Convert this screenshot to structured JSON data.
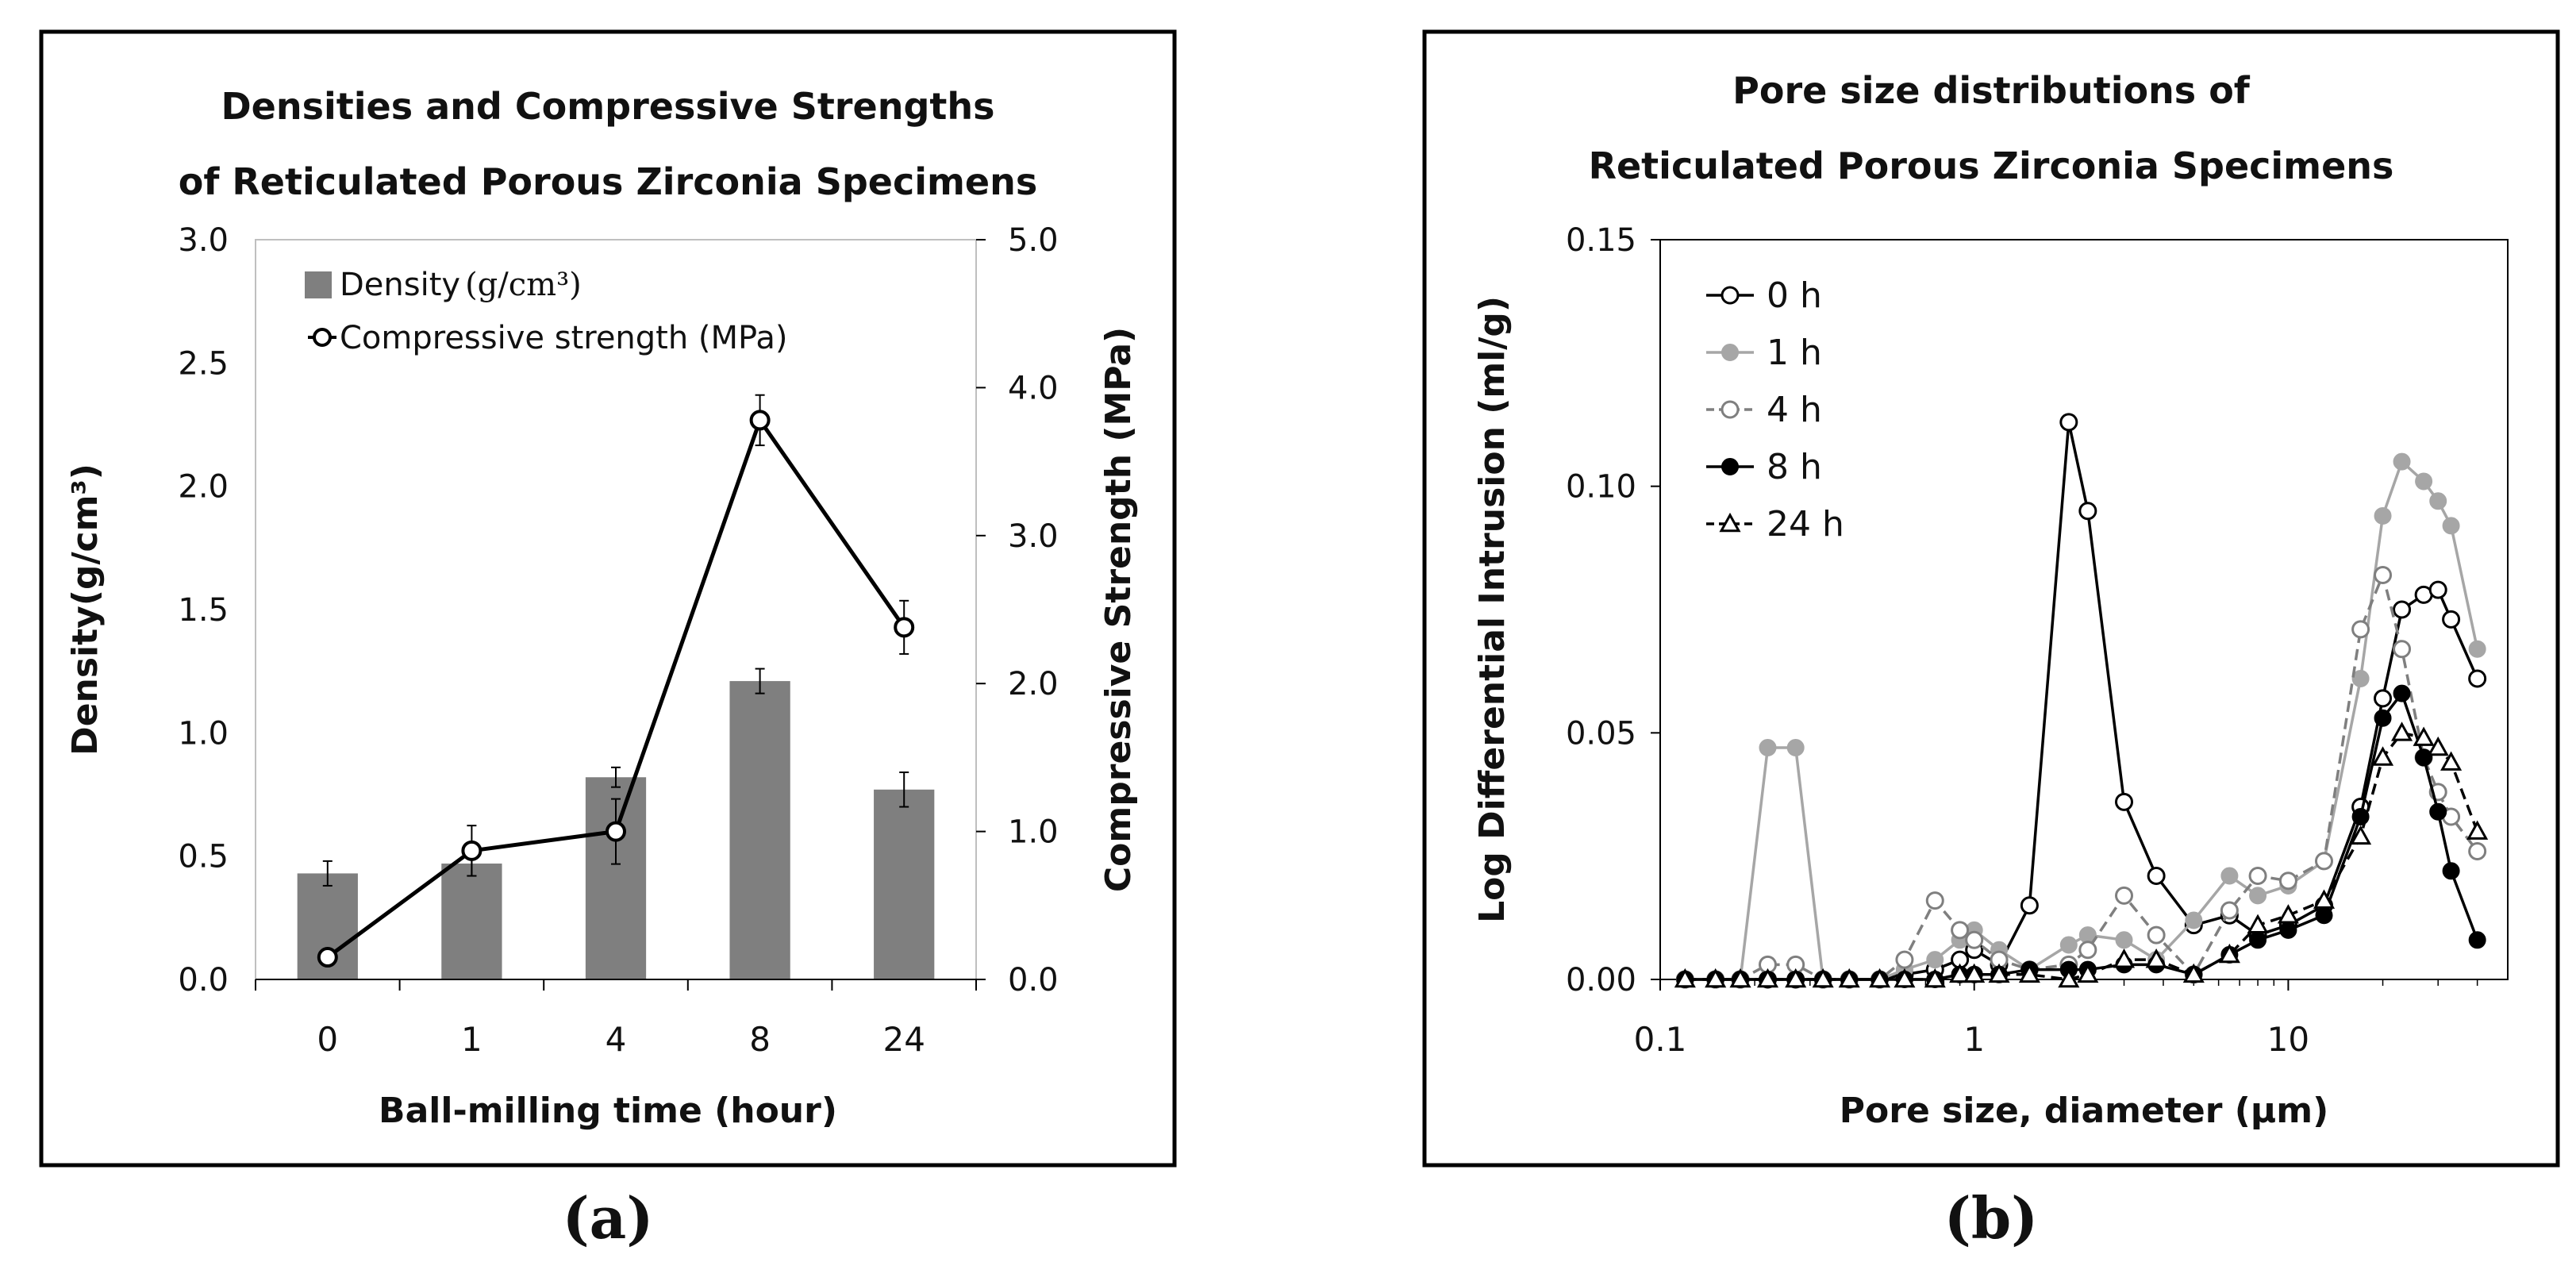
{
  "chart_data": [
    {
      "panel_label": "(a)",
      "type": "bar+line",
      "title_line1": "Densities and Compressive Strengths",
      "title_line2": "of Reticulated Porous Zirconia Specimens",
      "xlabel": "Ball-milling time (hour)",
      "ylabel_left": "Density(g/cm³)",
      "ylabel_right": "Compressive Strength (MPa)",
      "categories": [
        "0",
        "1",
        "4",
        "8",
        "24"
      ],
      "ylim_left": [
        0,
        3.0
      ],
      "ylim_right": [
        0,
        5.0
      ],
      "yticks_left": [
        "0.0",
        "0.5",
        "1.0",
        "1.5",
        "2.0",
        "2.5",
        "3.0"
      ],
      "yticks_right": [
        "0.0",
        "1.0",
        "2.0",
        "3.0",
        "4.0",
        "5.0"
      ],
      "legend_density": "Density",
      "legend_density_unit": "(g/cm³)",
      "legend_strength": "Compressive strength (MPa)",
      "density": {
        "values": [
          0.43,
          0.47,
          0.82,
          1.21,
          0.77
        ],
        "errors": [
          0.05,
          0.05,
          0.04,
          0.05,
          0.07
        ],
        "color": "#7f7f7f"
      },
      "strength": {
        "values": [
          0.15,
          0.87,
          1.0,
          3.78,
          2.38
        ],
        "errors": [
          0.03,
          0.17,
          0.22,
          0.17,
          0.18
        ],
        "color": "#000000"
      }
    },
    {
      "panel_label": "(b)",
      "type": "line",
      "xscale": "log",
      "title_line1": "Pore size distributions of",
      "title_line2": "Reticulated Porous Zirconia Specimens",
      "xlabel": "Pore size, diameter (μm)",
      "ylabel": "Log Differential Intrusion (ml/g)",
      "xlim": [
        0.1,
        50
      ],
      "ylim": [
        0,
        0.15
      ],
      "xticks": [
        0.1,
        1,
        10
      ],
      "xtick_labels": [
        "0.1",
        "1",
        "10"
      ],
      "yticks": [
        0,
        0.05,
        0.1,
        0.15
      ],
      "ytick_labels": [
        "0.00",
        "0.05",
        "0.10",
        "0.15"
      ],
      "series": [
        {
          "name": "0 h",
          "color": "#000000",
          "marker": "open-circle",
          "dash": "solid",
          "x": [
            0.12,
            0.15,
            0.18,
            0.22,
            0.27,
            0.33,
            0.4,
            0.5,
            0.6,
            0.75,
            0.9,
            1.0,
            1.2,
            1.5,
            2.0,
            2.3,
            3.0,
            3.8,
            5.0,
            6.5,
            8.0,
            10.0,
            13.0,
            17.0,
            20.0,
            23.0,
            27.0,
            30.0,
            33.0,
            40.0
          ],
          "y": [
            0,
            0,
            0,
            0,
            0,
            0,
            0,
            0,
            0.001,
            0.002,
            0.004,
            0.006,
            0.003,
            0.015,
            0.113,
            0.095,
            0.036,
            0.021,
            0.011,
            0.013,
            0.009,
            0.011,
            0.015,
            0.035,
            0.057,
            0.075,
            0.078,
            0.079,
            0.073,
            0.061
          ]
        },
        {
          "name": "1 h",
          "color": "#a6a6a6",
          "marker": "filled-circle",
          "dash": "solid",
          "x": [
            0.12,
            0.15,
            0.18,
            0.22,
            0.27,
            0.33,
            0.4,
            0.5,
            0.6,
            0.75,
            0.9,
            1.0,
            1.2,
            1.5,
            2.0,
            2.3,
            3.0,
            3.8,
            5.0,
            6.5,
            8.0,
            10.0,
            13.0,
            17.0,
            20.0,
            23.0,
            27.0,
            30.0,
            33.0,
            40.0
          ],
          "y": [
            0,
            0,
            0,
            0.047,
            0.047,
            0,
            0,
            0,
            0.002,
            0.004,
            0.008,
            0.01,
            0.006,
            0.002,
            0.007,
            0.009,
            0.008,
            0.004,
            0.012,
            0.021,
            0.017,
            0.019,
            0.024,
            0.061,
            0.094,
            0.105,
            0.101,
            0.097,
            0.092,
            0.067
          ]
        },
        {
          "name": "4 h",
          "color": "#7f7f7f",
          "marker": "open-circle",
          "dash": "dashed",
          "x": [
            0.12,
            0.15,
            0.18,
            0.22,
            0.27,
            0.33,
            0.4,
            0.5,
            0.6,
            0.75,
            0.9,
            1.0,
            1.2,
            1.5,
            2.0,
            2.3,
            3.0,
            3.8,
            5.0,
            6.5,
            8.0,
            10.0,
            13.0,
            17.0,
            20.0,
            23.0,
            27.0,
            30.0,
            33.0,
            40.0
          ],
          "y": [
            0,
            0,
            0,
            0.003,
            0.003,
            0,
            0,
            0,
            0.004,
            0.016,
            0.01,
            0.008,
            0.004,
            0.002,
            0.003,
            0.006,
            0.017,
            0.009,
            0.001,
            0.014,
            0.021,
            0.02,
            0.024,
            0.071,
            0.082,
            0.067,
            0.045,
            0.038,
            0.033,
            0.026
          ]
        },
        {
          "name": "8 h",
          "color": "#000000",
          "marker": "filled-circle",
          "dash": "solid",
          "x": [
            0.12,
            0.15,
            0.18,
            0.22,
            0.27,
            0.33,
            0.4,
            0.5,
            0.6,
            0.75,
            0.9,
            1.0,
            1.2,
            1.5,
            2.0,
            2.3,
            3.0,
            3.8,
            5.0,
            6.5,
            8.0,
            10.0,
            13.0,
            17.0,
            20.0,
            23.0,
            27.0,
            30.0,
            33.0,
            40.0
          ],
          "y": [
            0,
            0,
            0,
            0,
            0,
            0,
            0,
            0,
            0,
            0,
            0.001,
            0.001,
            0.001,
            0.002,
            0.002,
            0.002,
            0.003,
            0.003,
            0.001,
            0.005,
            0.008,
            0.01,
            0.013,
            0.033,
            0.053,
            0.058,
            0.045,
            0.034,
            0.022,
            0.008
          ]
        },
        {
          "name": "24 h",
          "color": "#000000",
          "marker": "open-triangle",
          "dash": "dashed",
          "x": [
            0.12,
            0.15,
            0.18,
            0.22,
            0.27,
            0.33,
            0.4,
            0.5,
            0.6,
            0.75,
            0.9,
            1.0,
            1.2,
            1.5,
            2.0,
            2.3,
            3.0,
            3.8,
            5.0,
            6.5,
            8.0,
            10.0,
            13.0,
            17.0,
            20.0,
            23.0,
            27.0,
            30.0,
            33.0,
            40.0
          ],
          "y": [
            0,
            0,
            0,
            0,
            0,
            0,
            0,
            0,
            0,
            0,
            0.001,
            0.001,
            0.001,
            0.001,
            0,
            0.001,
            0.004,
            0.004,
            0.001,
            0.005,
            0.011,
            0.013,
            0.016,
            0.029,
            0.045,
            0.05,
            0.049,
            0.047,
            0.044,
            0.03
          ]
        }
      ]
    }
  ]
}
